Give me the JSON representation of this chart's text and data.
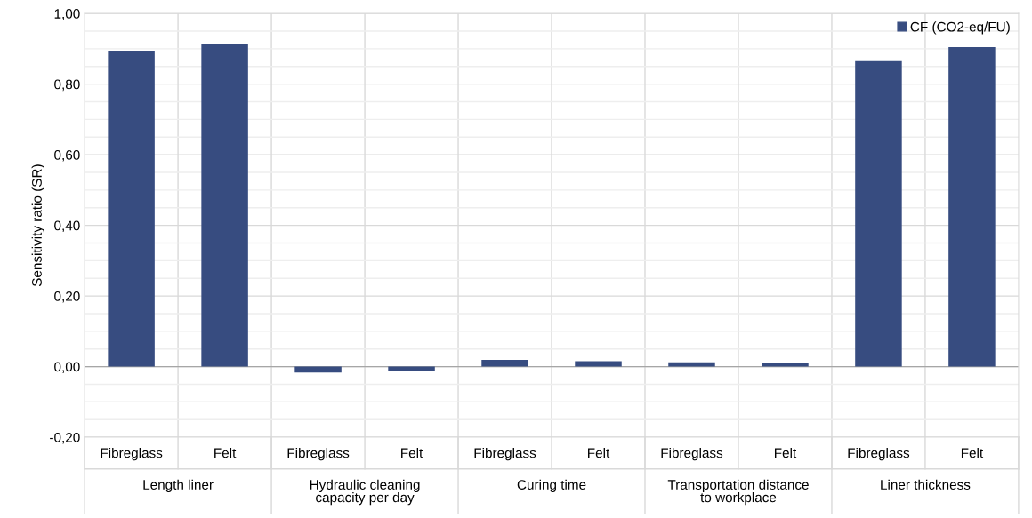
{
  "chart_data": {
    "type": "bar",
    "ylabel": "Sensitivity ratio (SR)",
    "categories": [
      "Fibreglass",
      "Felt",
      "Fibreglass",
      "Felt",
      "Fibreglass",
      "Felt",
      "Fibreglass",
      "Felt",
      "Fibreglass",
      "Felt"
    ],
    "series": [
      {
        "name": "CF (CO2-eq/FU)",
        "color": "#374c80",
        "values": [
          0.895,
          0.915,
          -0.017,
          -0.013,
          0.019,
          0.015,
          0.012,
          0.01,
          0.865,
          0.905
        ]
      }
    ],
    "annotations": [
      "Length liner",
      "Hydraulic cleaning\ncapacity per day",
      "Curing time",
      "Transportation distance\nto workplace",
      "Liner thickness"
    ],
    "ylim": [
      -0.2,
      1.0
    ],
    "yticks": [
      {
        "value": -0.2,
        "label": "-0,20"
      },
      {
        "value": 0,
        "label": "0,00"
      },
      {
        "value": 0.2,
        "label": "0,20"
      },
      {
        "value": 0.4,
        "label": "0,40"
      },
      {
        "value": 0.6,
        "label": "0,60"
      },
      {
        "value": 0.8,
        "label": "0,80"
      },
      {
        "value": 1.0,
        "label": "1,00"
      }
    ],
    "grid": true,
    "legend": "top right"
  }
}
